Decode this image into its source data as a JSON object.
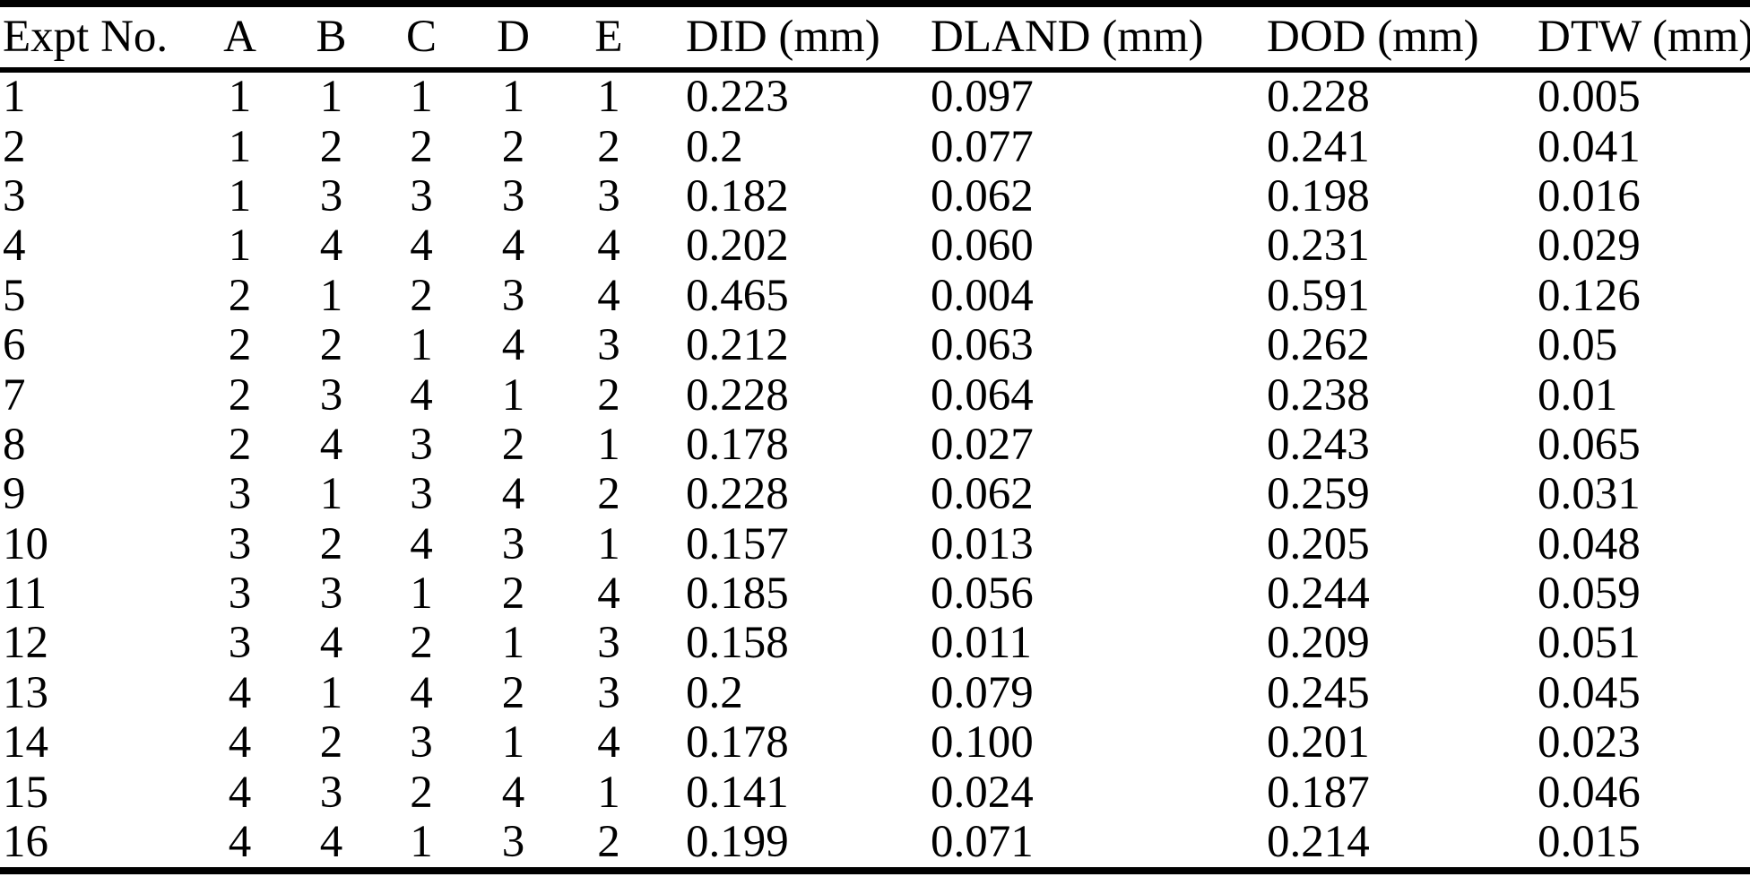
{
  "table": {
    "title": "Experiment results table (L16 orthogonal array)",
    "headers": [
      "Expt No.",
      "A",
      "B",
      "C",
      "D",
      "E",
      "DID (mm)",
      "DLAND (mm)",
      "DOD (mm)",
      "DTW (mm)"
    ],
    "column_keys": [
      "expt-no",
      "factor-a",
      "factor-b",
      "factor-c",
      "factor-d",
      "factor-e",
      "did-mm",
      "dland-mm",
      "dod-mm",
      "dtw-mm"
    ],
    "rows": [
      [
        "1",
        "1",
        "1",
        "1",
        "1",
        "1",
        "0.223",
        "0.097",
        "0.228",
        "0.005"
      ],
      [
        "2",
        "1",
        "2",
        "2",
        "2",
        "2",
        "0.2",
        "0.077",
        "0.241",
        "0.041"
      ],
      [
        "3",
        "1",
        "3",
        "3",
        "3",
        "3",
        "0.182",
        "0.062",
        "0.198",
        "0.016"
      ],
      [
        "4",
        "1",
        "4",
        "4",
        "4",
        "4",
        "0.202",
        "0.060",
        "0.231",
        "0.029"
      ],
      [
        "5",
        "2",
        "1",
        "2",
        "3",
        "4",
        "0.465",
        "0.004",
        "0.591",
        "0.126"
      ],
      [
        "6",
        "2",
        "2",
        "1",
        "4",
        "3",
        "0.212",
        "0.063",
        "0.262",
        "0.05"
      ],
      [
        "7",
        "2",
        "3",
        "4",
        "1",
        "2",
        "0.228",
        "0.064",
        "0.238",
        "0.01"
      ],
      [
        "8",
        "2",
        "4",
        "3",
        "2",
        "1",
        "0.178",
        "0.027",
        "0.243",
        "0.065"
      ],
      [
        "9",
        "3",
        "1",
        "3",
        "4",
        "2",
        "0.228",
        "0.062",
        "0.259",
        "0.031"
      ],
      [
        "10",
        "3",
        "2",
        "4",
        "3",
        "1",
        "0.157",
        "0.013",
        "0.205",
        "0.048"
      ],
      [
        "11",
        "3",
        "3",
        "1",
        "2",
        "4",
        "0.185",
        "0.056",
        "0.244",
        "0.059"
      ],
      [
        "12",
        "3",
        "4",
        "2",
        "1",
        "3",
        "0.158",
        "0.011",
        "0.209",
        "0.051"
      ],
      [
        "13",
        "4",
        "1",
        "4",
        "2",
        "3",
        "0.2",
        "0.079",
        "0.245",
        "0.045"
      ],
      [
        "14",
        "4",
        "2",
        "3",
        "1",
        "4",
        "0.178",
        "0.100",
        "0.201",
        "0.023"
      ],
      [
        "15",
        "4",
        "3",
        "2",
        "4",
        "1",
        "0.141",
        "0.024",
        "0.187",
        "0.046"
      ],
      [
        "16",
        "4",
        "4",
        "1",
        "3",
        "2",
        "0.199",
        "0.071",
        "0.214",
        "0.015"
      ]
    ],
    "colors": {
      "text": "#000000",
      "background": "#ffffff",
      "rule": "#000000"
    }
  }
}
